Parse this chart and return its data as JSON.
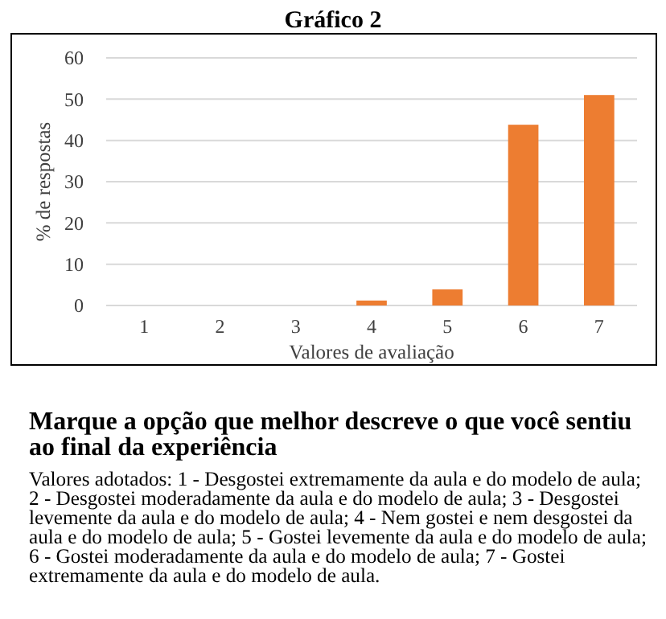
{
  "chart_data": {
    "type": "bar",
    "title": "Gráfico 2",
    "xlabel": "Valores de avaliação",
    "ylabel": "% de respostas",
    "categories": [
      "1",
      "2",
      "3",
      "4",
      "5",
      "6",
      "7"
    ],
    "values": [
      0,
      0,
      0,
      1.2,
      3.9,
      43.8,
      51
    ],
    "color": "#ed7d31",
    "ylim": [
      0,
      60
    ],
    "yticks": [
      0,
      10,
      20,
      30,
      40,
      50,
      60
    ],
    "grid": "y",
    "annotations": [
      "Marque a opção que melhor descreve o que você sentiu ao final da experiência",
      "Valores adotados: 1 - Desgostei extremamente da aula e do modelo de aula; 2 - Desgostei moderadamente da aula e do modelo de aula; 3 - Desgostei levemente da aula e do modelo de aula; 4 - Nem gostei e nem desgostei da aula e do modelo de aula; 5 - Gostei levemente da aula e do modelo de aula; 6 - Gostei moderadamente da aula e do modelo de aula; 7 - Gostei extremamente da aula e do modelo de aula."
    ]
  }
}
